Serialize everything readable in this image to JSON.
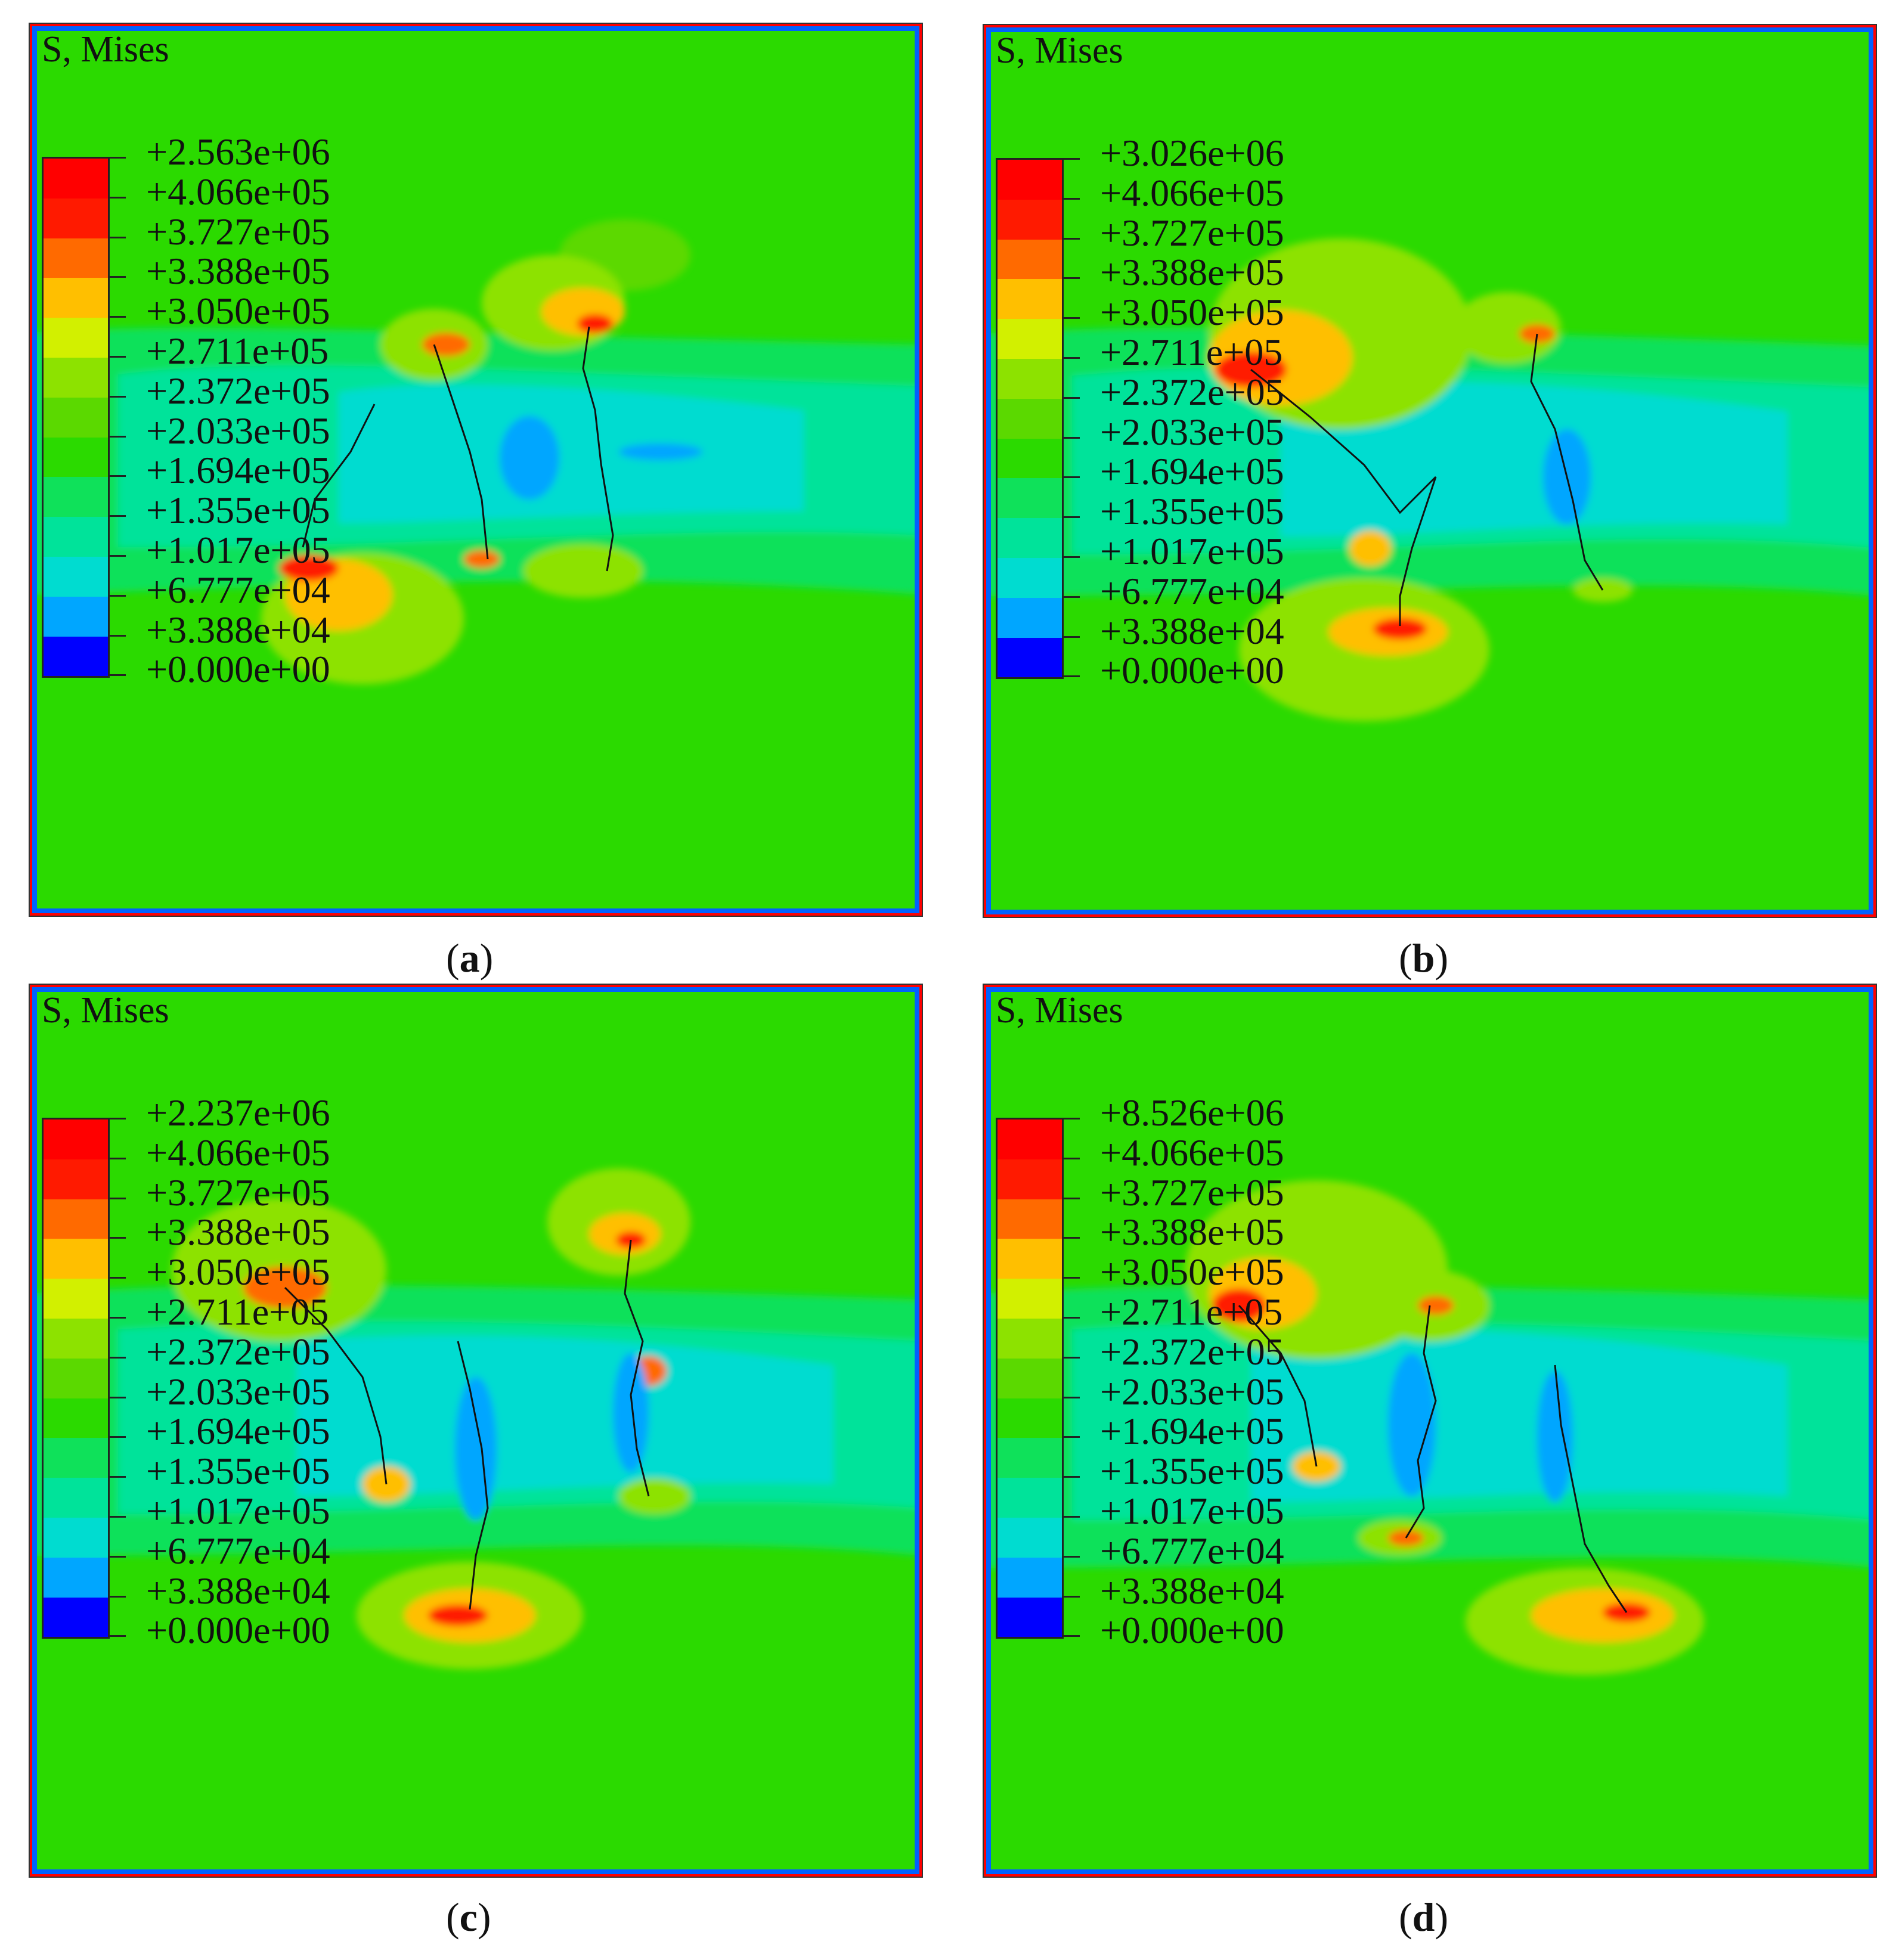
{
  "colors": {
    "contour": [
      "#0000ff",
      "#0061ff",
      "#00a6ff",
      "#00dcd0",
      "#00e39a",
      "#0fe15a",
      "#2bda00",
      "#5bd900",
      "#8de200",
      "#d2f000",
      "#ffbf00",
      "#ff6a00",
      "#ff1a00",
      "#ff0000"
    ]
  },
  "panels": [
    {
      "id": "a",
      "title": "S, Mises",
      "caption_open": "(",
      "caption_letter": "a",
      "caption_close": ")",
      "legend": [
        "+2.563e+06",
        "+4.066e+05",
        "+3.727e+05",
        "+3.388e+05",
        "+3.050e+05",
        "+2.711e+05",
        "+2.372e+05",
        "+2.033e+05",
        "+1.694e+05",
        "+1.355e+05",
        "+1.017e+05",
        "+6.777e+04",
        "+3.388e+04",
        "+0.000e+00"
      ]
    },
    {
      "id": "b",
      "title": "S, Mises",
      "caption_open": "(",
      "caption_letter": "b",
      "caption_close": ")",
      "legend": [
        "+3.026e+06",
        "+4.066e+05",
        "+3.727e+05",
        "+3.388e+05",
        "+3.050e+05",
        "+2.711e+05",
        "+2.372e+05",
        "+2.033e+05",
        "+1.694e+05",
        "+1.355e+05",
        "+1.017e+05",
        "+6.777e+04",
        "+3.388e+04",
        "+0.000e+00"
      ]
    },
    {
      "id": "c",
      "title": "S, Mises",
      "caption_open": "(",
      "caption_letter": "c",
      "caption_close": ")",
      "legend": [
        "+2.237e+06",
        "+4.066e+05",
        "+3.727e+05",
        "+3.388e+05",
        "+3.050e+05",
        "+2.711e+05",
        "+2.372e+05",
        "+2.033e+05",
        "+1.694e+05",
        "+1.355e+05",
        "+1.017e+05",
        "+6.777e+04",
        "+3.388e+04",
        "+0.000e+00"
      ]
    },
    {
      "id": "d",
      "title": "S, Mises",
      "caption_open": "(",
      "caption_letter": "d",
      "caption_close": ")",
      "legend": [
        "+8.526e+06",
        "+4.066e+05",
        "+3.727e+05",
        "+3.388e+05",
        "+3.050e+05",
        "+2.711e+05",
        "+2.372e+05",
        "+2.033e+05",
        "+1.694e+05",
        "+1.355e+05",
        "+1.017e+05",
        "+6.777e+04",
        "+3.388e+04",
        "+0.000e+00"
      ]
    }
  ]
}
